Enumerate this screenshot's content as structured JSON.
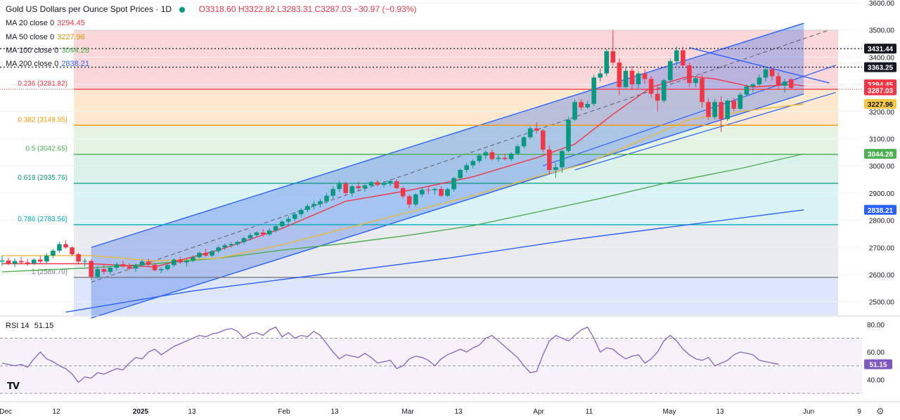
{
  "header": {
    "title": "Gold US Dollars per Ounce Spot Prices · 1D",
    "ohlc": "O3318.60 H3322.82 L3283.31 C3287.03 −30.97 (−0.93%)"
  },
  "moving_averages": [
    {
      "label": "MA 20 close 0",
      "value": "3294.45",
      "color": "#f23645"
    },
    {
      "label": "MA 50 close 0",
      "value": "3227.96",
      "color": "#e8b93a"
    },
    {
      "label": "MA 100 close 0",
      "value": "3044.28",
      "color": "#4caf50"
    },
    {
      "label": "MA 200 close 0",
      "value": "2838.21",
      "color": "#2962ff"
    }
  ],
  "rsi": {
    "label": "RSI 14",
    "value": "51.15",
    "color": "#7e57c2"
  },
  "fib_levels": [
    {
      "label": "0.236 (3281.82)",
      "price": 3281.82,
      "color": "#f23645"
    },
    {
      "label": "0.382 (3149.55)",
      "price": 3149.55,
      "color": "#ff9800"
    },
    {
      "label": "0.5 (3042.65)",
      "price": 3042.65,
      "color": "#4caf50"
    },
    {
      "label": "0.618 (2935.76)",
      "price": 2935.76,
      "color": "#089981"
    },
    {
      "label": "0.786 (2783.56)",
      "price": 2783.56,
      "color": "#00acc1"
    },
    {
      "label": "1 (2589.70)",
      "price": 2589.7,
      "color": "#787b86"
    }
  ],
  "price_tags": [
    {
      "value": "3431.44",
      "price": 3431.44,
      "bg": "#131722",
      "fg": "#ffffff"
    },
    {
      "value": "3363.25",
      "price": 3363.25,
      "bg": "#131722",
      "fg": "#ffffff"
    },
    {
      "value": "3294.45",
      "price": 3300,
      "bg": "#f23645",
      "fg": "#ffffff"
    },
    {
      "value": "3287.03",
      "price": 3278,
      "bg": "#f23645",
      "fg": "#ffffff"
    },
    {
      "value": "3227.96",
      "price": 3227.96,
      "bg": "#f7c843",
      "fg": "#131722"
    },
    {
      "value": "3044.28",
      "price": 3044.28,
      "bg": "#4caf50",
      "fg": "#ffffff"
    },
    {
      "value": "2838.21",
      "price": 2838.21,
      "bg": "#2962ff",
      "fg": "#ffffff"
    }
  ],
  "chart_data": {
    "type": "candlestick",
    "price_axis": {
      "ylim": [
        2450,
        3600
      ],
      "ticks": [
        2500,
        2600,
        2700,
        2800,
        2900,
        3000,
        3100,
        3200,
        3300,
        3400,
        3500,
        3600
      ]
    },
    "rsi_axis": {
      "ylim": [
        25,
        85
      ],
      "ticks": [
        40,
        60,
        80
      ],
      "bands": [
        30,
        50,
        70
      ]
    },
    "x_labels": [
      "Dec",
      "12",
      "2025",
      "13",
      "Feb",
      "13",
      "Mar",
      "13",
      "Apr",
      "11",
      "May",
      "13",
      "Jun",
      "9"
    ],
    "candles": [
      {
        "o": 2648,
        "h": 2670,
        "l": 2632,
        "c": 2652
      },
      {
        "o": 2652,
        "h": 2662,
        "l": 2635,
        "c": 2640
      },
      {
        "o": 2640,
        "h": 2660,
        "l": 2628,
        "c": 2650
      },
      {
        "o": 2650,
        "h": 2665,
        "l": 2640,
        "c": 2645
      },
      {
        "o": 2645,
        "h": 2658,
        "l": 2632,
        "c": 2641
      },
      {
        "o": 2641,
        "h": 2660,
        "l": 2635,
        "c": 2655
      },
      {
        "o": 2655,
        "h": 2668,
        "l": 2640,
        "c": 2648
      },
      {
        "o": 2648,
        "h": 2678,
        "l": 2640,
        "c": 2670
      },
      {
        "o": 2670,
        "h": 2695,
        "l": 2660,
        "c": 2688
      },
      {
        "o": 2688,
        "h": 2720,
        "l": 2680,
        "c": 2712
      },
      {
        "o": 2712,
        "h": 2726,
        "l": 2695,
        "c": 2700
      },
      {
        "o": 2700,
        "h": 2705,
        "l": 2670,
        "c": 2675
      },
      {
        "o": 2675,
        "h": 2680,
        "l": 2640,
        "c": 2648
      },
      {
        "o": 2648,
        "h": 2660,
        "l": 2630,
        "c": 2650
      },
      {
        "o": 2650,
        "h": 2655,
        "l": 2580,
        "c": 2592
      },
      {
        "o": 2592,
        "h": 2630,
        "l": 2585,
        "c": 2620
      },
      {
        "o": 2620,
        "h": 2635,
        "l": 2600,
        "c": 2610
      },
      {
        "o": 2610,
        "h": 2630,
        "l": 2600,
        "c": 2625
      },
      {
        "o": 2625,
        "h": 2645,
        "l": 2615,
        "c": 2638
      },
      {
        "o": 2638,
        "h": 2652,
        "l": 2625,
        "c": 2630
      },
      {
        "o": 2630,
        "h": 2642,
        "l": 2618,
        "c": 2622
      },
      {
        "o": 2622,
        "h": 2640,
        "l": 2610,
        "c": 2634
      },
      {
        "o": 2634,
        "h": 2655,
        "l": 2628,
        "c": 2648
      },
      {
        "o": 2648,
        "h": 2658,
        "l": 2630,
        "c": 2636
      },
      {
        "o": 2636,
        "h": 2645,
        "l": 2612,
        "c": 2616
      },
      {
        "o": 2616,
        "h": 2625,
        "l": 2605,
        "c": 2620
      },
      {
        "o": 2620,
        "h": 2640,
        "l": 2615,
        "c": 2635
      },
      {
        "o": 2635,
        "h": 2660,
        "l": 2628,
        "c": 2655
      },
      {
        "o": 2655,
        "h": 2665,
        "l": 2640,
        "c": 2645
      },
      {
        "o": 2645,
        "h": 2660,
        "l": 2630,
        "c": 2652
      },
      {
        "o": 2652,
        "h": 2670,
        "l": 2645,
        "c": 2664
      },
      {
        "o": 2664,
        "h": 2685,
        "l": 2660,
        "c": 2680
      },
      {
        "o": 2680,
        "h": 2695,
        "l": 2665,
        "c": 2670
      },
      {
        "o": 2670,
        "h": 2690,
        "l": 2665,
        "c": 2686
      },
      {
        "o": 2686,
        "h": 2705,
        "l": 2680,
        "c": 2700
      },
      {
        "o": 2700,
        "h": 2715,
        "l": 2690,
        "c": 2708
      },
      {
        "o": 2708,
        "h": 2720,
        "l": 2700,
        "c": 2712
      },
      {
        "o": 2712,
        "h": 2725,
        "l": 2705,
        "c": 2720
      },
      {
        "o": 2720,
        "h": 2740,
        "l": 2712,
        "c": 2734
      },
      {
        "o": 2734,
        "h": 2752,
        "l": 2725,
        "c": 2745
      },
      {
        "o": 2745,
        "h": 2760,
        "l": 2738,
        "c": 2755
      },
      {
        "o": 2755,
        "h": 2768,
        "l": 2740,
        "c": 2748
      },
      {
        "o": 2748,
        "h": 2770,
        "l": 2742,
        "c": 2762
      },
      {
        "o": 2762,
        "h": 2785,
        "l": 2755,
        "c": 2778
      },
      {
        "o": 2778,
        "h": 2800,
        "l": 2770,
        "c": 2795
      },
      {
        "o": 2795,
        "h": 2815,
        "l": 2785,
        "c": 2805
      },
      {
        "o": 2805,
        "h": 2830,
        "l": 2795,
        "c": 2822
      },
      {
        "o": 2822,
        "h": 2845,
        "l": 2810,
        "c": 2838
      },
      {
        "o": 2838,
        "h": 2860,
        "l": 2830,
        "c": 2852
      },
      {
        "o": 2852,
        "h": 2870,
        "l": 2840,
        "c": 2860
      },
      {
        "o": 2860,
        "h": 2878,
        "l": 2848,
        "c": 2870
      },
      {
        "o": 2870,
        "h": 2900,
        "l": 2862,
        "c": 2890
      },
      {
        "o": 2890,
        "h": 2925,
        "l": 2880,
        "c": 2915
      },
      {
        "o": 2915,
        "h": 2945,
        "l": 2905,
        "c": 2935
      },
      {
        "o": 2935,
        "h": 2942,
        "l": 2890,
        "c": 2900
      },
      {
        "o": 2900,
        "h": 2930,
        "l": 2885,
        "c": 2925
      },
      {
        "o": 2925,
        "h": 2940,
        "l": 2910,
        "c": 2918
      },
      {
        "o": 2918,
        "h": 2935,
        "l": 2905,
        "c": 2928
      },
      {
        "o": 2928,
        "h": 2945,
        "l": 2920,
        "c": 2940
      },
      {
        "o": 2940,
        "h": 2948,
        "l": 2925,
        "c": 2930
      },
      {
        "o": 2930,
        "h": 2944,
        "l": 2920,
        "c": 2938
      },
      {
        "o": 2938,
        "h": 2950,
        "l": 2925,
        "c": 2944
      },
      {
        "o": 2944,
        "h": 2952,
        "l": 2915,
        "c": 2918
      },
      {
        "o": 2918,
        "h": 2925,
        "l": 2880,
        "c": 2888
      },
      {
        "o": 2888,
        "h": 2895,
        "l": 2845,
        "c": 2858
      },
      {
        "o": 2858,
        "h": 2900,
        "l": 2850,
        "c": 2895
      },
      {
        "o": 2895,
        "h": 2920,
        "l": 2885,
        "c": 2912
      },
      {
        "o": 2912,
        "h": 2925,
        "l": 2895,
        "c": 2910
      },
      {
        "o": 2910,
        "h": 2920,
        "l": 2895,
        "c": 2915
      },
      {
        "o": 2915,
        "h": 2925,
        "l": 2885,
        "c": 2890
      },
      {
        "o": 2890,
        "h": 2920,
        "l": 2885,
        "c": 2914
      },
      {
        "o": 2914,
        "h": 2960,
        "l": 2905,
        "c": 2955
      },
      {
        "o": 2955,
        "h": 2990,
        "l": 2948,
        "c": 2985
      },
      {
        "o": 2985,
        "h": 3010,
        "l": 2975,
        "c": 3002
      },
      {
        "o": 3002,
        "h": 3025,
        "l": 2990,
        "c": 3018
      },
      {
        "o": 3018,
        "h": 3045,
        "l": 3010,
        "c": 3038
      },
      {
        "o": 3038,
        "h": 3058,
        "l": 3025,
        "c": 3050
      },
      {
        "o": 3050,
        "h": 3060,
        "l": 3020,
        "c": 3025
      },
      {
        "o": 3025,
        "h": 3040,
        "l": 3015,
        "c": 3030
      },
      {
        "o": 3030,
        "h": 3045,
        "l": 3020,
        "c": 3025
      },
      {
        "o": 3025,
        "h": 3050,
        "l": 3018,
        "c": 3045
      },
      {
        "o": 3045,
        "h": 3080,
        "l": 3040,
        "c": 3072
      },
      {
        "o": 3072,
        "h": 3110,
        "l": 3065,
        "c": 3105
      },
      {
        "o": 3105,
        "h": 3145,
        "l": 3098,
        "c": 3138
      },
      {
        "o": 3138,
        "h": 3160,
        "l": 3120,
        "c": 3130
      },
      {
        "o": 3130,
        "h": 3135,
        "l": 3050,
        "c": 3060
      },
      {
        "o": 3060,
        "h": 3075,
        "l": 2970,
        "c": 2985
      },
      {
        "o": 2985,
        "h": 3010,
        "l": 2956,
        "c": 2995
      },
      {
        "o": 2995,
        "h": 3060,
        "l": 2975,
        "c": 3055
      },
      {
        "o": 3055,
        "h": 3180,
        "l": 3050,
        "c": 3170
      },
      {
        "o": 3170,
        "h": 3245,
        "l": 3165,
        "c": 3235
      },
      {
        "o": 3235,
        "h": 3245,
        "l": 3205,
        "c": 3215
      },
      {
        "o": 3215,
        "h": 3240,
        "l": 3210,
        "c": 3228
      },
      {
        "o": 3228,
        "h": 3335,
        "l": 3220,
        "c": 3325
      },
      {
        "o": 3325,
        "h": 3358,
        "l": 3310,
        "c": 3340
      },
      {
        "o": 3340,
        "h": 3430,
        "l": 3330,
        "c": 3422
      },
      {
        "o": 3422,
        "h": 3500,
        "l": 3370,
        "c": 3380
      },
      {
        "o": 3380,
        "h": 3395,
        "l": 3260,
        "c": 3290
      },
      {
        "o": 3290,
        "h": 3365,
        "l": 3285,
        "c": 3350
      },
      {
        "o": 3350,
        "h": 3368,
        "l": 3280,
        "c": 3300
      },
      {
        "o": 3300,
        "h": 3348,
        "l": 3285,
        "c": 3340
      },
      {
        "o": 3340,
        "h": 3355,
        "l": 3300,
        "c": 3320
      },
      {
        "o": 3320,
        "h": 3330,
        "l": 3250,
        "c": 3265
      },
      {
        "o": 3265,
        "h": 3300,
        "l": 3200,
        "c": 3240
      },
      {
        "o": 3240,
        "h": 3320,
        "l": 3232,
        "c": 3315
      },
      {
        "o": 3315,
        "h": 3395,
        "l": 3305,
        "c": 3385
      },
      {
        "o": 3385,
        "h": 3440,
        "l": 3370,
        "c": 3425
      },
      {
        "o": 3425,
        "h": 3438,
        "l": 3360,
        "c": 3370
      },
      {
        "o": 3370,
        "h": 3380,
        "l": 3290,
        "c": 3305
      },
      {
        "o": 3305,
        "h": 3330,
        "l": 3290,
        "c": 3322
      },
      {
        "o": 3322,
        "h": 3338,
        "l": 3215,
        "c": 3235
      },
      {
        "o": 3235,
        "h": 3248,
        "l": 3170,
        "c": 3180
      },
      {
        "o": 3180,
        "h": 3245,
        "l": 3170,
        "c": 3235
      },
      {
        "o": 3235,
        "h": 3255,
        "l": 3125,
        "c": 3172
      },
      {
        "o": 3172,
        "h": 3245,
        "l": 3165,
        "c": 3240
      },
      {
        "o": 3240,
        "h": 3250,
        "l": 3200,
        "c": 3210
      },
      {
        "o": 3210,
        "h": 3270,
        "l": 3205,
        "c": 3262
      },
      {
        "o": 3262,
        "h": 3300,
        "l": 3255,
        "c": 3292
      },
      {
        "o": 3292,
        "h": 3305,
        "l": 3270,
        "c": 3300
      },
      {
        "o": 3300,
        "h": 3335,
        "l": 3295,
        "c": 3325
      },
      {
        "o": 3325,
        "h": 3365,
        "l": 3310,
        "c": 3355
      },
      {
        "o": 3355,
        "h": 3362,
        "l": 3315,
        "c": 3330
      },
      {
        "o": 3330,
        "h": 3345,
        "l": 3285,
        "c": 3295
      },
      {
        "o": 3295,
        "h": 3320,
        "l": 3270,
        "c": 3310
      },
      {
        "o": 3318.6,
        "h": 3322.82,
        "l": 3283.31,
        "c": 3287.03
      }
    ],
    "ma20": [
      [
        0,
        2640
      ],
      [
        14,
        2640
      ],
      [
        24,
        2628
      ],
      [
        34,
        2690
      ],
      [
        44,
        2770
      ],
      [
        54,
        2870
      ],
      [
        64,
        2910
      ],
      [
        74,
        2960
      ],
      [
        84,
        3030
      ],
      [
        90,
        3080
      ],
      [
        96,
        3190
      ],
      [
        102,
        3290
      ],
      [
        108,
        3330
      ],
      [
        112,
        3320
      ],
      [
        118,
        3290
      ],
      [
        124,
        3300
      ],
      [
        126,
        3294.45
      ]
    ],
    "ma50": [
      [
        0,
        2670
      ],
      [
        14,
        2670
      ],
      [
        24,
        2650
      ],
      [
        34,
        2660
      ],
      [
        44,
        2710
      ],
      [
        54,
        2770
      ],
      [
        64,
        2830
      ],
      [
        74,
        2890
      ],
      [
        84,
        2960
      ],
      [
        92,
        3010
      ],
      [
        100,
        3090
      ],
      [
        108,
        3170
      ],
      [
        116,
        3200
      ],
      [
        126,
        3227.96
      ]
    ],
    "ma100": [
      [
        0,
        2610
      ],
      [
        14,
        2625
      ],
      [
        24,
        2640
      ],
      [
        34,
        2660
      ],
      [
        44,
        2690
      ],
      [
        54,
        2715
      ],
      [
        64,
        2745
      ],
      [
        74,
        2780
      ],
      [
        84,
        2830
      ],
      [
        94,
        2880
      ],
      [
        104,
        2935
      ],
      [
        116,
        2990
      ],
      [
        126,
        3044.28
      ]
    ],
    "ma200": [
      [
        10,
        2462
      ],
      [
        30,
        2540
      ],
      [
        50,
        2600
      ],
      [
        70,
        2660
      ],
      [
        90,
        2730
      ],
      [
        110,
        2790
      ],
      [
        126,
        2838.21
      ]
    ],
    "rsi": [
      52,
      51,
      50,
      51,
      49,
      55,
      60,
      55,
      53,
      50,
      48,
      44,
      38,
      42,
      41,
      45,
      44,
      46,
      48,
      47,
      52,
      56,
      55,
      60,
      62,
      58,
      61,
      64,
      66,
      68,
      70,
      72,
      71,
      73,
      74,
      76,
      77,
      75,
      70,
      73,
      74,
      72,
      76,
      78,
      71,
      74,
      70,
      72,
      71,
      75,
      72,
      66,
      60,
      55,
      58,
      57,
      56,
      59,
      56,
      52,
      53,
      54,
      48,
      50,
      55,
      57,
      56,
      54,
      50,
      55,
      58,
      60,
      62,
      60,
      63,
      65,
      70,
      72,
      68,
      64,
      60,
      56,
      50,
      45,
      46,
      58,
      68,
      72,
      70,
      68,
      72,
      76,
      78,
      70,
      60,
      63,
      62,
      58,
      55,
      57,
      58,
      52,
      55,
      60,
      68,
      72,
      68,
      62,
      58,
      55,
      54,
      56,
      50,
      52,
      54,
      58,
      60,
      59,
      58,
      54,
      53,
      52,
      51.15
    ],
    "channel": {
      "upper": [
        [
          14,
          2700
        ],
        [
          126,
          3525
        ]
      ],
      "lower": [
        [
          14,
          2440
        ],
        [
          126,
          3265
        ]
      ]
    },
    "channel_mid": {
      "points": [
        [
          14,
          2572
        ],
        [
          130,
          3500
        ]
      ]
    },
    "mini_channel": {
      "upper": [
        [
          85,
          3000
        ],
        [
          131,
          3370
        ]
      ],
      "lower": [
        [
          90,
          2985
        ],
        [
          131,
          3270
        ]
      ]
    },
    "trendline_down": [
      [
        108,
        3435
      ],
      [
        130,
        3305
      ]
    ],
    "dotted_levels": [
      3431.44,
      3363.25
    ]
  }
}
